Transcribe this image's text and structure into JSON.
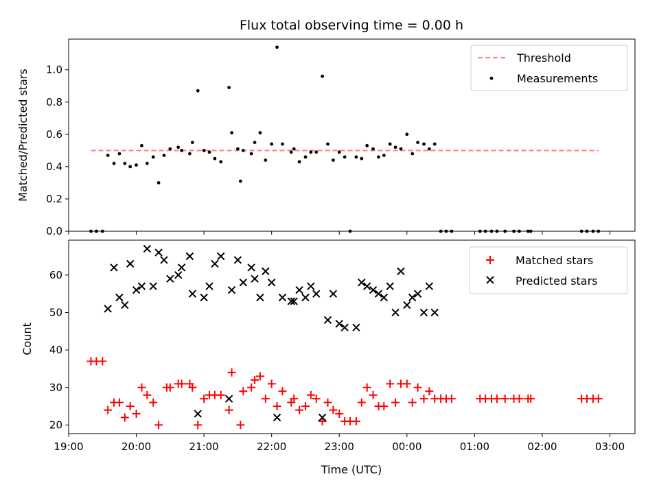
{
  "chart_data": [
    {
      "type": "scatter",
      "title": "Flux total observing time = 0.00 h",
      "ylabel": "Matched/Predicted stars",
      "xlabel": "",
      "ylim": [
        0,
        1.19
      ],
      "xlim": [
        19.0,
        27.37
      ],
      "x_tick_labels": [
        "19:00",
        "20:00",
        "21:00",
        "22:00",
        "23:00",
        "00:00",
        "01:00",
        "02:00",
        "03:00"
      ],
      "y_ticks": [
        0.0,
        0.2,
        0.4,
        0.6,
        0.8,
        1.0
      ],
      "y_tick_labels": [
        "0.0",
        "0.2",
        "0.4",
        "0.6",
        "0.8",
        "1.0"
      ],
      "legend_position": "top-right",
      "threshold": {
        "name": "Threshold",
        "y": 0.5,
        "x": [
          19.33,
          26.83
        ],
        "color": "#ff7a7a"
      },
      "series": [
        {
          "name": "Measurements",
          "color": "#000000",
          "marker": "dot",
          "points": [
            [
              19.33,
              0.0
            ],
            [
              19.41,
              0.0
            ],
            [
              19.5,
              0.0
            ],
            [
              19.58,
              0.47
            ],
            [
              19.67,
              0.42
            ],
            [
              19.75,
              0.48
            ],
            [
              19.83,
              0.42
            ],
            [
              19.91,
              0.4
            ],
            [
              20.0,
              0.41
            ],
            [
              20.08,
              0.53
            ],
            [
              20.16,
              0.42
            ],
            [
              20.25,
              0.46
            ],
            [
              20.33,
              0.3
            ],
            [
              20.41,
              0.47
            ],
            [
              20.5,
              0.51
            ],
            [
              20.62,
              0.52
            ],
            [
              20.67,
              0.5
            ],
            [
              20.79,
              0.48
            ],
            [
              20.83,
              0.55
            ],
            [
              20.91,
              0.87
            ],
            [
              21.0,
              0.5
            ],
            [
              21.08,
              0.49
            ],
            [
              21.16,
              0.45
            ],
            [
              21.25,
              0.43
            ],
            [
              21.37,
              0.89
            ],
            [
              21.41,
              0.61
            ],
            [
              21.5,
              0.51
            ],
            [
              21.54,
              0.31
            ],
            [
              21.58,
              0.5
            ],
            [
              21.7,
              0.48
            ],
            [
              21.75,
              0.55
            ],
            [
              21.83,
              0.61
            ],
            [
              21.91,
              0.44
            ],
            [
              22.0,
              0.54
            ],
            [
              22.08,
              1.14
            ],
            [
              22.16,
              0.54
            ],
            [
              22.29,
              0.49
            ],
            [
              22.33,
              0.51
            ],
            [
              22.41,
              0.43
            ],
            [
              22.5,
              0.46
            ],
            [
              22.58,
              0.49
            ],
            [
              22.66,
              0.49
            ],
            [
              22.75,
              0.96
            ],
            [
              22.83,
              0.54
            ],
            [
              22.91,
              0.44
            ],
            [
              23.0,
              0.49
            ],
            [
              23.08,
              0.46
            ],
            [
              23.16,
              0.0
            ],
            [
              23.25,
              0.46
            ],
            [
              23.33,
              0.45
            ],
            [
              23.41,
              0.53
            ],
            [
              23.5,
              0.51
            ],
            [
              23.58,
              0.46
            ],
            [
              23.66,
              0.47
            ],
            [
              23.75,
              0.54
            ],
            [
              23.83,
              0.52
            ],
            [
              23.91,
              0.51
            ],
            [
              24.0,
              0.6
            ],
            [
              24.08,
              0.48
            ],
            [
              24.16,
              0.55
            ],
            [
              24.25,
              0.54
            ],
            [
              24.33,
              0.51
            ],
            [
              24.41,
              0.54
            ],
            [
              24.5,
              0.0
            ],
            [
              24.58,
              0.0
            ],
            [
              24.66,
              0.0
            ],
            [
              25.08,
              0.0
            ],
            [
              25.16,
              0.0
            ],
            [
              25.25,
              0.0
            ],
            [
              25.33,
              0.0
            ],
            [
              25.45,
              0.0
            ],
            [
              25.58,
              0.0
            ],
            [
              25.66,
              0.0
            ],
            [
              25.79,
              0.0
            ],
            [
              25.83,
              0.0
            ],
            [
              26.58,
              0.0
            ],
            [
              26.66,
              0.0
            ],
            [
              26.75,
              0.0
            ],
            [
              26.83,
              0.0
            ]
          ]
        }
      ]
    },
    {
      "type": "scatter",
      "title": "",
      "ylabel": "Count",
      "xlabel": "Time (UTC)",
      "ylim": [
        17.7,
        69.3
      ],
      "xlim": [
        19.0,
        27.37
      ],
      "x_tick_labels": [
        "19:00",
        "20:00",
        "21:00",
        "22:00",
        "23:00",
        "00:00",
        "01:00",
        "02:00",
        "03:00"
      ],
      "y_ticks": [
        20,
        30,
        40,
        50,
        60
      ],
      "y_tick_labels": [
        "20",
        "30",
        "40",
        "50",
        "60"
      ],
      "legend_position": "top-right",
      "series": [
        {
          "name": "Matched stars",
          "color": "#ff0000",
          "marker": "plus",
          "points": [
            [
              19.33,
              37
            ],
            [
              19.41,
              37
            ],
            [
              19.5,
              37
            ],
            [
              19.58,
              24
            ],
            [
              19.67,
              26
            ],
            [
              19.75,
              26
            ],
            [
              19.83,
              22
            ],
            [
              19.91,
              25
            ],
            [
              20.0,
              23
            ],
            [
              20.08,
              30
            ],
            [
              20.16,
              28
            ],
            [
              20.25,
              26
            ],
            [
              20.33,
              20
            ],
            [
              20.45,
              30
            ],
            [
              20.5,
              30
            ],
            [
              20.62,
              31
            ],
            [
              20.67,
              31
            ],
            [
              20.79,
              31
            ],
            [
              20.83,
              30
            ],
            [
              20.91,
              20
            ],
            [
              21.0,
              27
            ],
            [
              21.08,
              28
            ],
            [
              21.16,
              28
            ],
            [
              21.25,
              28
            ],
            [
              21.37,
              24
            ],
            [
              21.41,
              34
            ],
            [
              21.54,
              20
            ],
            [
              21.58,
              29
            ],
            [
              21.7,
              30
            ],
            [
              21.75,
              32
            ],
            [
              21.83,
              33
            ],
            [
              21.91,
              27
            ],
            [
              22.0,
              31
            ],
            [
              22.08,
              25
            ],
            [
              22.16,
              29
            ],
            [
              22.29,
              26
            ],
            [
              22.33,
              27
            ],
            [
              22.41,
              24
            ],
            [
              22.5,
              25
            ],
            [
              22.58,
              28
            ],
            [
              22.66,
              27
            ],
            [
              22.75,
              21
            ],
            [
              22.83,
              26
            ],
            [
              22.91,
              24
            ],
            [
              23.0,
              23
            ],
            [
              23.08,
              21
            ],
            [
              23.16,
              21
            ],
            [
              23.25,
              21
            ],
            [
              23.33,
              26
            ],
            [
              23.41,
              30
            ],
            [
              23.5,
              28
            ],
            [
              23.58,
              25
            ],
            [
              23.66,
              25
            ],
            [
              23.75,
              31
            ],
            [
              23.83,
              26
            ],
            [
              23.91,
              31
            ],
            [
              24.0,
              31
            ],
            [
              24.08,
              26
            ],
            [
              24.16,
              30
            ],
            [
              24.25,
              27
            ],
            [
              24.33,
              29
            ],
            [
              24.41,
              27
            ],
            [
              24.5,
              27
            ],
            [
              24.58,
              27
            ],
            [
              24.66,
              27
            ],
            [
              25.08,
              27
            ],
            [
              25.16,
              27
            ],
            [
              25.25,
              27
            ],
            [
              25.33,
              27
            ],
            [
              25.45,
              27
            ],
            [
              25.58,
              27
            ],
            [
              25.66,
              27
            ],
            [
              25.79,
              27
            ],
            [
              25.83,
              27
            ],
            [
              26.58,
              27
            ],
            [
              26.66,
              27
            ],
            [
              26.75,
              27
            ],
            [
              26.83,
              27
            ]
          ]
        },
        {
          "name": "Predicted stars",
          "color": "#000000",
          "marker": "x",
          "points": [
            [
              19.58,
              51
            ],
            [
              19.67,
              62
            ],
            [
              19.75,
              54
            ],
            [
              19.83,
              52
            ],
            [
              19.91,
              63
            ],
            [
              20.0,
              56
            ],
            [
              20.08,
              57
            ],
            [
              20.16,
              67
            ],
            [
              20.25,
              57
            ],
            [
              20.33,
              66
            ],
            [
              20.41,
              64
            ],
            [
              20.5,
              59
            ],
            [
              20.62,
              60
            ],
            [
              20.67,
              62
            ],
            [
              20.79,
              65
            ],
            [
              20.83,
              55
            ],
            [
              20.91,
              23
            ],
            [
              21.0,
              54
            ],
            [
              21.08,
              57
            ],
            [
              21.16,
              63
            ],
            [
              21.25,
              65
            ],
            [
              21.37,
              27
            ],
            [
              21.41,
              56
            ],
            [
              21.5,
              64
            ],
            [
              21.58,
              58
            ],
            [
              21.7,
              62
            ],
            [
              21.75,
              59
            ],
            [
              21.83,
              54
            ],
            [
              21.91,
              61
            ],
            [
              22.0,
              58
            ],
            [
              22.08,
              22
            ],
            [
              22.16,
              54
            ],
            [
              22.29,
              53
            ],
            [
              22.33,
              53
            ],
            [
              22.41,
              56
            ],
            [
              22.5,
              54
            ],
            [
              22.58,
              57
            ],
            [
              22.66,
              55
            ],
            [
              22.75,
              22
            ],
            [
              22.83,
              48
            ],
            [
              22.91,
              55
            ],
            [
              23.0,
              47
            ],
            [
              23.08,
              46
            ],
            [
              23.25,
              46
            ],
            [
              23.33,
              58
            ],
            [
              23.41,
              57
            ],
            [
              23.5,
              56
            ],
            [
              23.58,
              55
            ],
            [
              23.66,
              54
            ],
            [
              23.75,
              57
            ],
            [
              23.83,
              50
            ],
            [
              23.91,
              61
            ],
            [
              24.0,
              52
            ],
            [
              24.08,
              54
            ],
            [
              24.16,
              55
            ],
            [
              24.25,
              50
            ],
            [
              24.33,
              57
            ],
            [
              24.41,
              50
            ]
          ]
        }
      ]
    }
  ]
}
